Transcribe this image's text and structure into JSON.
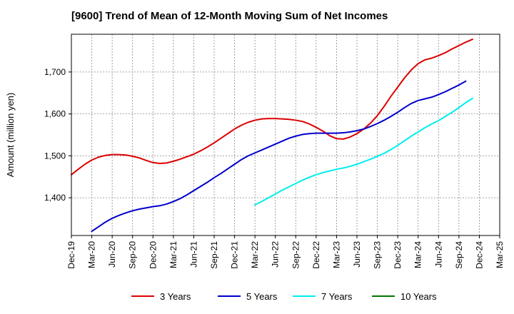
{
  "chart_data": {
    "type": "line",
    "title": "[9600]  Trend of Mean of 12-Month Moving Sum of Net Incomes",
    "xlabel": "",
    "ylabel": "Amount (million yen)",
    "ylim": [
      1310,
      1790
    ],
    "yticks": [
      1400,
      1500,
      1600,
      1700
    ],
    "ytick_labels": [
      "1,400",
      "1,500",
      "1,600",
      "1,700"
    ],
    "xtick_labels": [
      "Dec-19",
      "Mar-20",
      "Jun-20",
      "Sep-20",
      "Dec-20",
      "Mar-21",
      "Jun-21",
      "Sep-21",
      "Dec-21",
      "Mar-22",
      "Jun-22",
      "Sep-22",
      "Dec-22",
      "Mar-23",
      "Jun-23",
      "Sep-23",
      "Dec-23",
      "Mar-24",
      "Jun-24",
      "Sep-24",
      "Dec-24",
      "Mar-25"
    ],
    "grid": true,
    "legend_position": "bottom",
    "series": [
      {
        "name": "3 Years",
        "color": "#dd0000",
        "start_index": 0,
        "values": [
          1455,
          1468,
          1480,
          1490,
          1497,
          1501,
          1503,
          1503,
          1502,
          1499,
          1495,
          1489,
          1484,
          1482,
          1483,
          1487,
          1492,
          1498,
          1504,
          1512,
          1521,
          1531,
          1542,
          1553,
          1564,
          1573,
          1580,
          1585,
          1588,
          1589,
          1589,
          1588,
          1587,
          1585,
          1582,
          1576,
          1568,
          1559,
          1548,
          1541,
          1540,
          1545,
          1553,
          1564,
          1578,
          1596,
          1618,
          1642,
          1664,
          1686,
          1705,
          1720,
          1729,
          1733,
          1739,
          1746,
          1755,
          1763,
          1771,
          1778
        ]
      },
      {
        "name": "5 Years",
        "color": "#0000cc",
        "start_index": 3,
        "values": [
          1320,
          1331,
          1342,
          1351,
          1358,
          1364,
          1369,
          1373,
          1376,
          1379,
          1381,
          1385,
          1391,
          1398,
          1407,
          1417,
          1427,
          1437,
          1448,
          1458,
          1469,
          1480,
          1491,
          1500,
          1507,
          1514,
          1521,
          1528,
          1535,
          1542,
          1547,
          1551,
          1553,
          1554,
          1554,
          1554,
          1554,
          1555,
          1557,
          1560,
          1564,
          1570,
          1577,
          1585,
          1594,
          1604,
          1615,
          1625,
          1632,
          1636,
          1640,
          1646,
          1653,
          1661,
          1669,
          1678
        ]
      },
      {
        "name": "7 Years",
        "color": "#00eeee",
        "start_index": 27,
        "values": [
          1383,
          1391,
          1400,
          1409,
          1418,
          1426,
          1434,
          1442,
          1449,
          1455,
          1460,
          1464,
          1468,
          1471,
          1475,
          1480,
          1486,
          1492,
          1499,
          1506,
          1515,
          1525,
          1536,
          1547,
          1557,
          1567,
          1576,
          1584,
          1594,
          1604,
          1615,
          1627,
          1637
        ]
      },
      {
        "name": "10 Years",
        "color": "#007700",
        "start_index": 0,
        "values": []
      }
    ]
  }
}
